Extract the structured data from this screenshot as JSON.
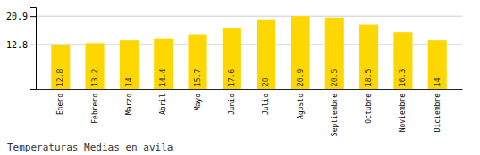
{
  "chart_data": {
    "type": "bar",
    "title": "Temperaturas Medias en avila",
    "categories": [
      "Enero",
      "Febrero",
      "Marzo",
      "Abril",
      "Mayo",
      "Junio",
      "Julio",
      "Agosto",
      "Septiembre",
      "Octubre",
      "Noviembre",
      "Diciembre"
    ],
    "values": [
      12.8,
      13.2,
      14.0,
      14.4,
      15.7,
      17.6,
      20.0,
      20.9,
      20.5,
      18.5,
      16.3,
      14.0
    ],
    "color": "#FFD700",
    "ylim": [
      0,
      23.5
    ],
    "yticks": [
      12.8,
      20.9
    ],
    "grid": true,
    "data_labels": true
  }
}
